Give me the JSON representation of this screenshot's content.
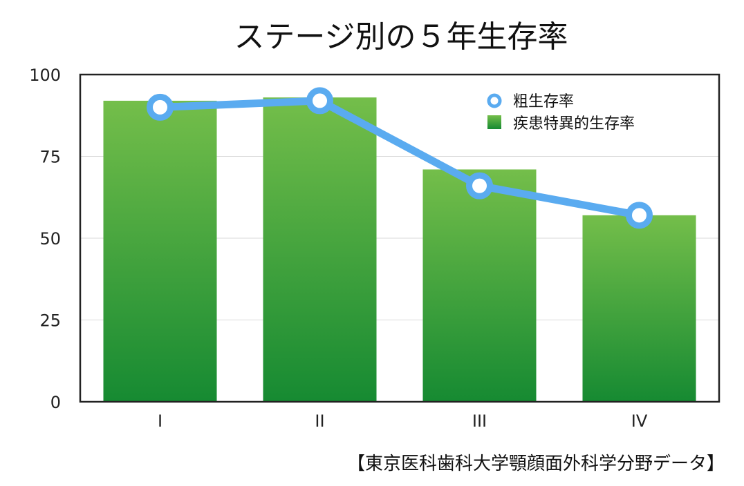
{
  "chart_data": {
    "type": "bar+line",
    "title": "ステージ別の５年生存率",
    "categories": [
      "I",
      "II",
      "III",
      "IV"
    ],
    "series": [
      {
        "name": "疾患特異的生存率",
        "type": "bar",
        "values": [
          92,
          93,
          71,
          57
        ],
        "color": "#2e9a3e"
      },
      {
        "name": "粗生存率",
        "type": "line",
        "values": [
          90,
          92,
          66,
          57
        ],
        "color": "#5aabf0"
      }
    ],
    "ylim": [
      0,
      100
    ],
    "yticks": [
      0,
      25,
      50,
      75,
      100
    ],
    "grid": true,
    "legend_position": "top-right",
    "source": "【東京医科歯科大学顎顔面外科学分野データ】"
  }
}
